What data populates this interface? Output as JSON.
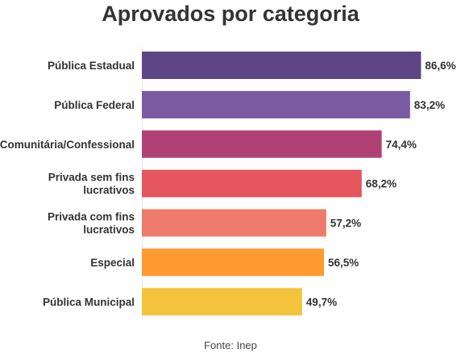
{
  "chart_data": {
    "type": "bar",
    "orientation": "horizontal",
    "title": "Aprovados por categoria",
    "categories": [
      [
        "Pública Estadual"
      ],
      [
        "Pública Federal"
      ],
      [
        "Comunitária/Confessional"
      ],
      [
        "Privada sem fins",
        "lucrativos"
      ],
      [
        "Privada com fins",
        "lucrativos"
      ],
      [
        "Especial"
      ],
      [
        "Pública Municipal"
      ]
    ],
    "values": [
      86.6,
      83.2,
      74.4,
      68.2,
      57.2,
      56.5,
      49.7
    ],
    "value_labels": [
      "86,6%",
      "83,2%",
      "74,4%",
      "68,2%",
      "57,2%",
      "56,5%",
      "49,7%"
    ],
    "colors": [
      "#5e4586",
      "#7a5ba2",
      "#b04074",
      "#e4555e",
      "#ee7a6b",
      "#fe9a2f",
      "#f2c33b"
    ],
    "xlim": [
      0,
      100
    ],
    "grid": false,
    "legend": "none"
  },
  "source": "Fonte: Inep"
}
